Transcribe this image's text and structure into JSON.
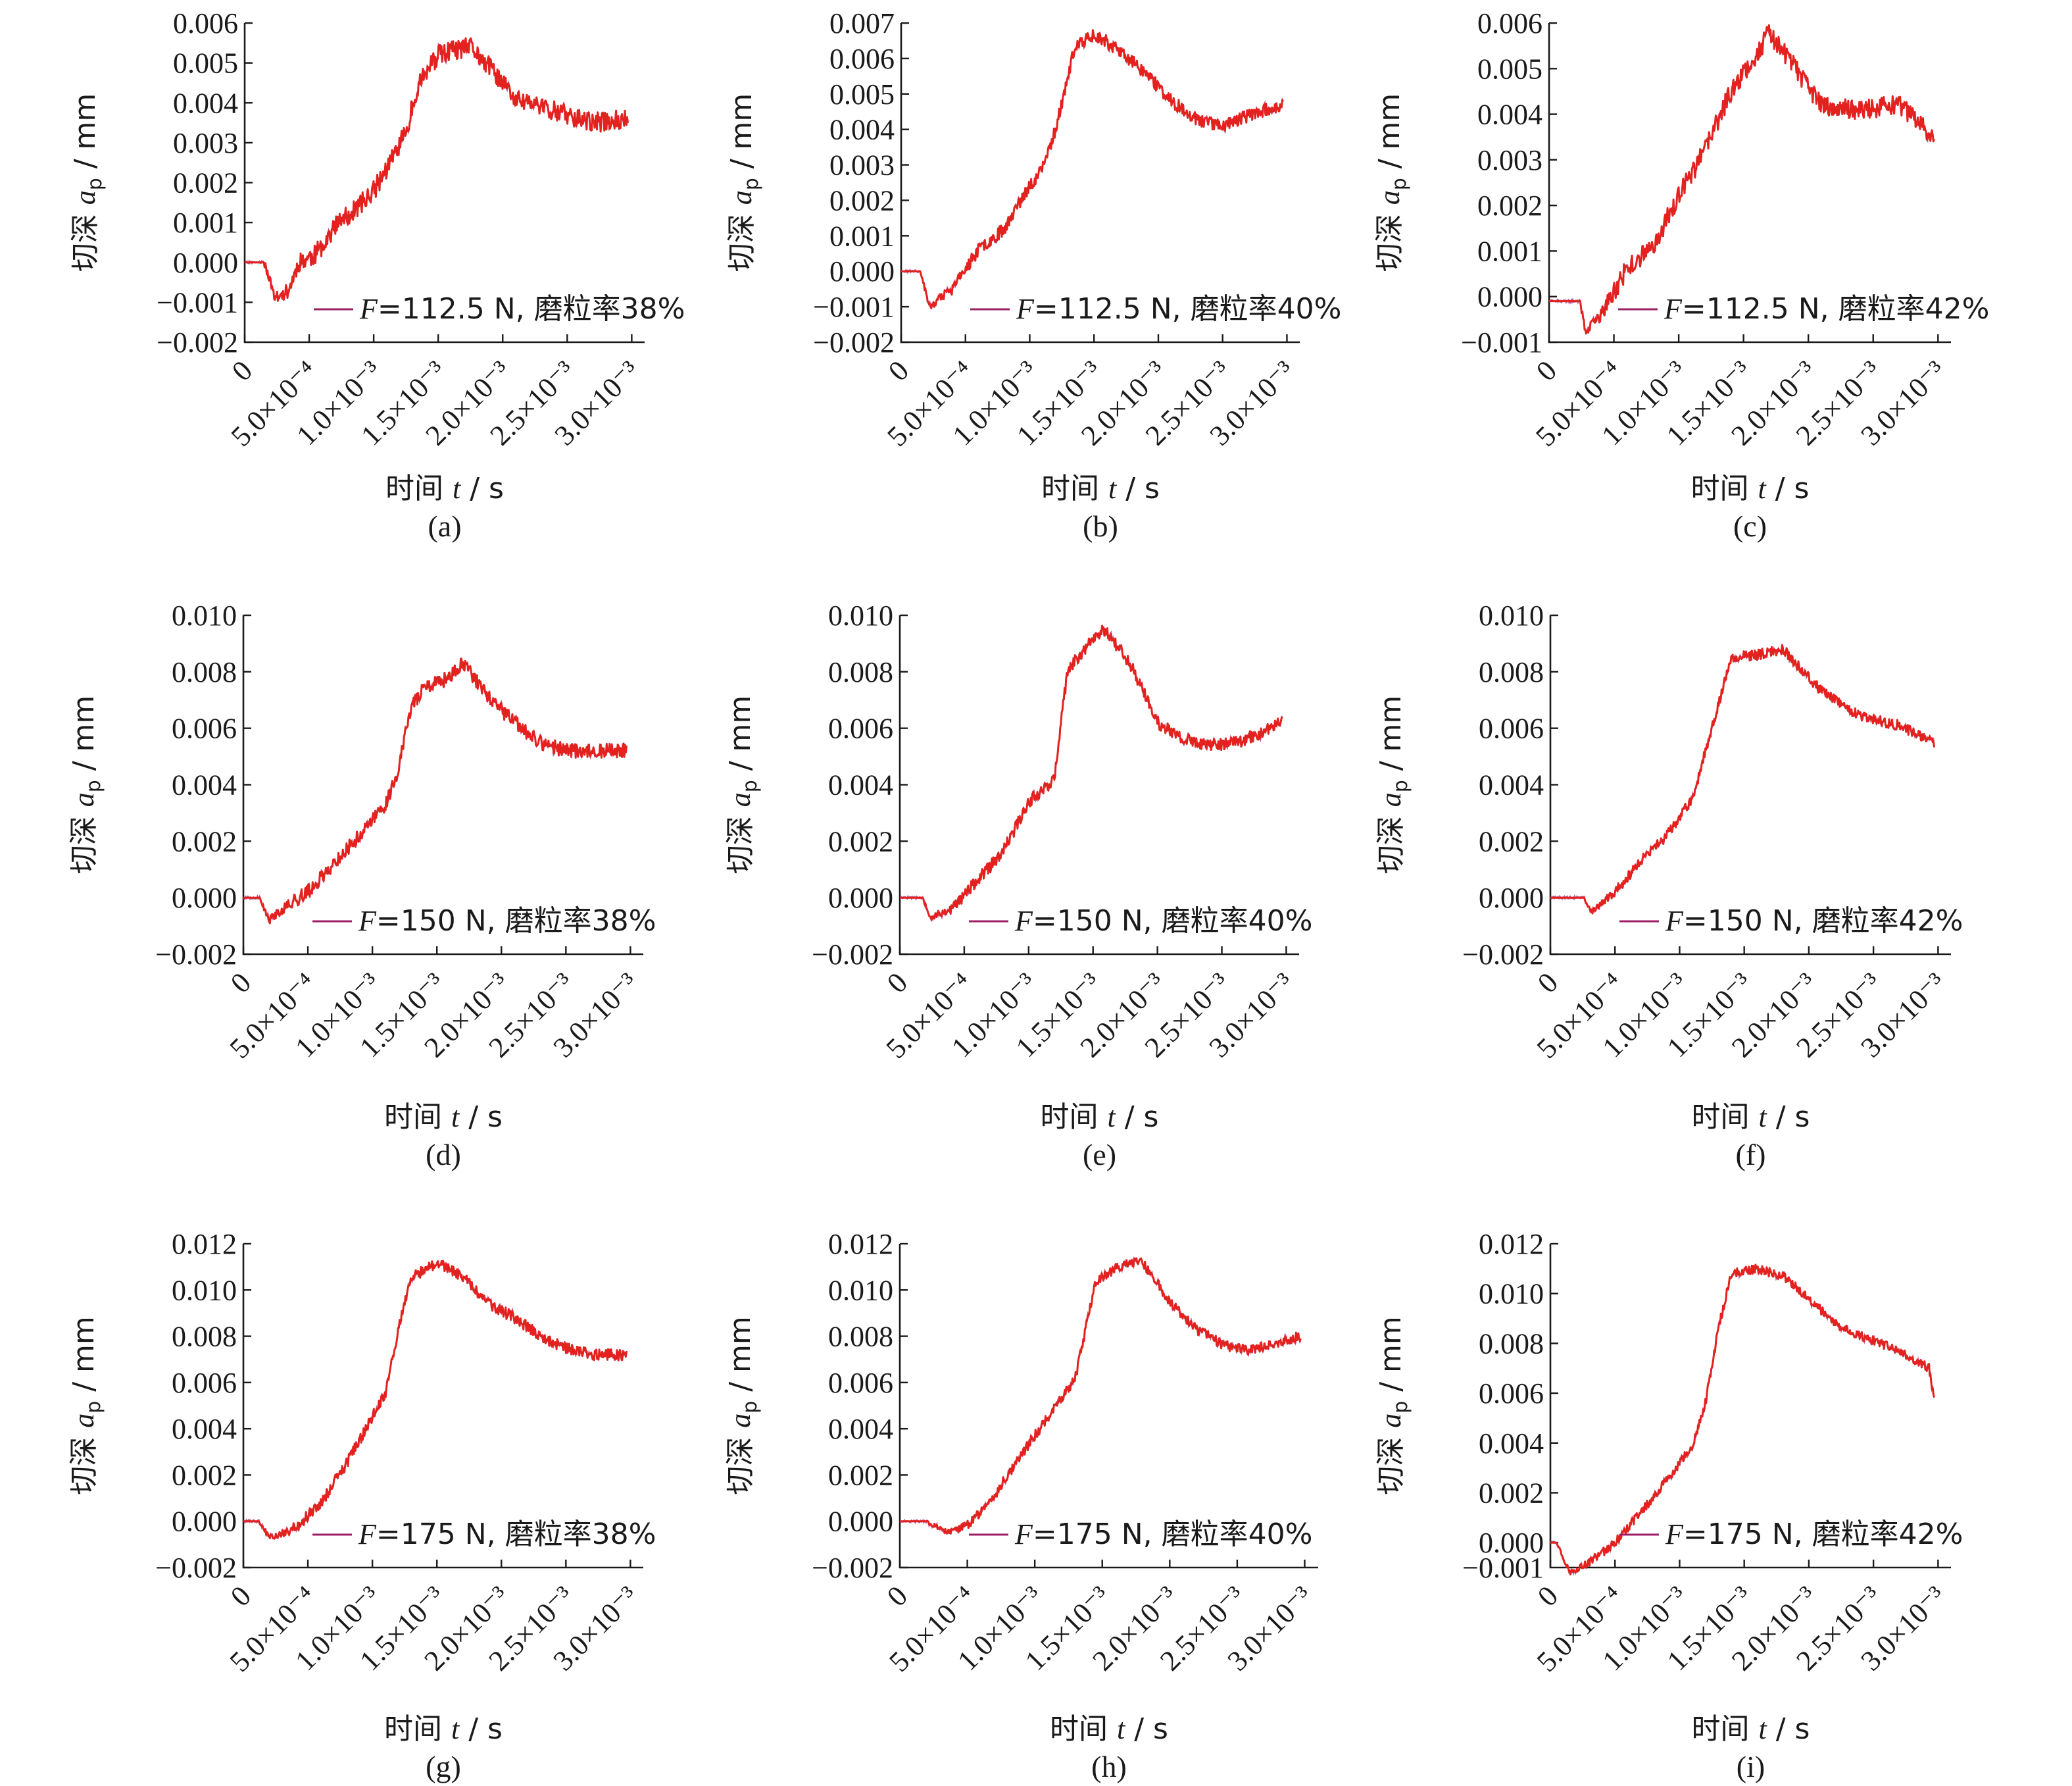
{
  "colors": {
    "series_primary": "#e3211e",
    "series_secondary": "#9c1f66",
    "axis": "#1a1a1a"
  },
  "chart_data": [
    {
      "panel": "(a)",
      "type": "line",
      "ylabel_prefix": "切深 ",
      "ylabel_var": "a",
      "ylabel_sub": "p",
      "ylabel_unit": " / mm",
      "xlabel_prefix": "时间 ",
      "xlabel_var": "t",
      "xlabel_unit": " / s",
      "xlim": [
        0,
        0.0031
      ],
      "ylim": [
        -0.002,
        0.006
      ],
      "yticks": [
        -0.002,
        -0.001,
        0.0,
        0.001,
        0.002,
        0.003,
        0.004,
        0.005,
        0.006
      ],
      "ytick_labels": [
        "−0.002",
        "−0.001",
        "0.000",
        "0.001",
        "0.002",
        "0.003",
        "0.004",
        "0.005",
        "0.006"
      ],
      "xticks": [
        0,
        0.0005,
        0.001,
        0.0015,
        0.002,
        0.0025,
        0.003
      ],
      "xtick_labels": [
        "0",
        "5.0×10⁻⁴",
        "1.0×10⁻³",
        "1.5×10⁻³",
        "2.0×10⁻³",
        "2.5×10⁻³",
        "3.0×10⁻³"
      ],
      "legend": {
        "var": "F",
        "text": "=112.5 N, 磨粒率38%",
        "position": "bottom-right"
      },
      "series": [
        {
          "noise": 0.00025,
          "seed": 11,
          "x": [
            0,
            0.00015,
            0.00024,
            0.00034,
            0.00042,
            0.00055,
            0.0007,
            0.00085,
            0.001,
            0.00113,
            0.00125,
            0.00135,
            0.0015,
            0.00162,
            0.00175,
            0.0019,
            0.0021,
            0.0024,
            0.0027,
            0.00297
          ],
          "y": [
            0.0,
            0.0,
            -0.0009,
            -0.0007,
            0.0,
            0.0002,
            0.0009,
            0.0013,
            0.0018,
            0.0025,
            0.0033,
            0.0045,
            0.0052,
            0.0053,
            0.0054,
            0.0049,
            0.0041,
            0.0038,
            0.0035,
            0.0036
          ]
        }
      ]
    },
    {
      "panel": "(b)",
      "type": "line",
      "ylabel_prefix": "切深 ",
      "ylabel_var": "a",
      "ylabel_sub": "p",
      "ylabel_unit": " / mm",
      "xlabel_prefix": "时间 ",
      "xlabel_var": "t",
      "xlabel_unit": " / s",
      "xlim": [
        0,
        0.0031
      ],
      "ylim": [
        -0.002,
        0.007
      ],
      "yticks": [
        -0.002,
        -0.001,
        0.0,
        0.001,
        0.002,
        0.003,
        0.004,
        0.005,
        0.006,
        0.007
      ],
      "ytick_labels": [
        "−0.002",
        "−0.001",
        "0.000",
        "0.001",
        "0.002",
        "0.003",
        "0.004",
        "0.005",
        "0.006",
        "0.007"
      ],
      "xticks": [
        0,
        0.0005,
        0.001,
        0.0015,
        0.002,
        0.0025,
        0.003
      ],
      "xtick_labels": [
        "0",
        "5.0×10⁻⁴",
        "1.0×10⁻³",
        "1.5×10⁻³",
        "2.0×10⁻³",
        "2.5×10⁻³",
        "3.0×10⁻³"
      ],
      "legend": {
        "var": "F",
        "text": "=112.5 N, 磨粒率40%",
        "position": "bottom-right"
      },
      "series": [
        {
          "noise": 0.00018,
          "seed": 23,
          "x": [
            0,
            0.00015,
            0.00022,
            0.0004,
            0.0006,
            0.0008,
            0.001,
            0.0011,
            0.0012,
            0.00135,
            0.0015,
            0.0017,
            0.0019,
            0.0021,
            0.0023,
            0.0025,
            0.0027,
            0.00297
          ],
          "y": [
            0.0,
            0.0,
            -0.001,
            -0.0005,
            0.0006,
            0.0012,
            0.0024,
            0.0029,
            0.004,
            0.0063,
            0.0067,
            0.0062,
            0.0056,
            0.0048,
            0.0043,
            0.0041,
            0.0044,
            0.0047
          ]
        }
      ]
    },
    {
      "panel": "(c)",
      "type": "line",
      "ylabel_prefix": "切深 ",
      "ylabel_var": "a",
      "ylabel_sub": "p",
      "ylabel_unit": " / mm",
      "xlabel_prefix": "时间 ",
      "xlabel_var": "t",
      "xlabel_unit": " / s",
      "xlim": [
        0,
        0.0031
      ],
      "ylim": [
        -0.001,
        0.006
      ],
      "yticks": [
        -0.001,
        0.0,
        0.001,
        0.002,
        0.003,
        0.004,
        0.005,
        0.006
      ],
      "ytick_labels": [
        "−0.001",
        "0.000",
        "0.001",
        "0.002",
        "0.003",
        "0.004",
        "0.005",
        "0.006"
      ],
      "xticks": [
        0,
        0.0005,
        0.001,
        0.0015,
        0.002,
        0.0025,
        0.003
      ],
      "xtick_labels": [
        "0",
        "5.0×10⁻⁴",
        "1.0×10⁻³",
        "1.5×10⁻³",
        "2.0×10⁻³",
        "2.5×10⁻³",
        "3.0×10⁻³"
      ],
      "legend": {
        "var": "F",
        "text": "=112.5 N, 磨粒率42%",
        "position": "bottom-right"
      },
      "series": [
        {
          "noise": 0.00022,
          "seed": 37,
          "x": [
            0,
            0.00024,
            0.00028,
            0.0004,
            0.0006,
            0.0008,
            0.001,
            0.0012,
            0.0014,
            0.0016,
            0.0017,
            0.0019,
            0.0021,
            0.0024,
            0.0027,
            0.00297
          ],
          "y": [
            -0.0001,
            -0.0001,
            -0.0008,
            -0.0004,
            0.0006,
            0.0011,
            0.0022,
            0.0032,
            0.0045,
            0.0053,
            0.0058,
            0.005,
            0.0042,
            0.0041,
            0.0042,
            0.0035
          ]
        }
      ]
    },
    {
      "panel": "(d)",
      "type": "line",
      "ylabel_prefix": "切深 ",
      "ylabel_var": "a",
      "ylabel_sub": "p",
      "ylabel_unit": " / mm",
      "xlabel_prefix": "时间 ",
      "xlabel_var": "t",
      "xlabel_unit": " / s",
      "xlim": [
        0,
        0.0031
      ],
      "ylim": [
        -0.002,
        0.01
      ],
      "yticks": [
        -0.002,
        0.0,
        0.002,
        0.004,
        0.006,
        0.008,
        0.01
      ],
      "ytick_labels": [
        "−0.002",
        "0.000",
        "0.002",
        "0.004",
        "0.006",
        "0.008",
        "0.010"
      ],
      "xticks": [
        0,
        0.0005,
        0.001,
        0.0015,
        0.002,
        0.0025,
        0.003
      ],
      "xtick_labels": [
        "0",
        "5.0×10⁻⁴",
        "1.0×10⁻³",
        "1.5×10⁻³",
        "2.0×10⁻³",
        "2.5×10⁻³",
        "3.0×10⁻³"
      ],
      "legend": {
        "var": "F",
        "text": "=150 N, 磨粒率38%",
        "position": "bottom-right"
      },
      "series": [
        {
          "noise": 0.00025,
          "seed": 41,
          "x": [
            0,
            0.00012,
            0.0002,
            0.0003,
            0.0005,
            0.0007,
            0.0009,
            0.0011,
            0.0012,
            0.0013,
            0.0014,
            0.0016,
            0.0017,
            0.0019,
            0.0021,
            0.0023,
            0.0025,
            0.0027,
            0.00297
          ],
          "y": [
            0.0,
            0.0,
            -0.0008,
            -0.0004,
            0.0002,
            0.0012,
            0.0022,
            0.0033,
            0.0045,
            0.0068,
            0.0074,
            0.0078,
            0.0083,
            0.0071,
            0.0062,
            0.0055,
            0.0052,
            0.0052,
            0.0052
          ]
        }
      ]
    },
    {
      "panel": "(e)",
      "type": "line",
      "ylabel_prefix": "切深 ",
      "ylabel_var": "a",
      "ylabel_sub": "p",
      "ylabel_unit": " / mm",
      "xlabel_prefix": "时间 ",
      "xlabel_var": "t",
      "xlabel_unit": " / s",
      "xlim": [
        0,
        0.0031
      ],
      "ylim": [
        -0.002,
        0.01
      ],
      "yticks": [
        -0.002,
        0.0,
        0.002,
        0.004,
        0.006,
        0.008,
        0.01
      ],
      "ytick_labels": [
        "−0.002",
        "0.000",
        "0.002",
        "0.004",
        "0.006",
        "0.008",
        "0.010"
      ],
      "xticks": [
        0,
        0.0005,
        0.001,
        0.0015,
        0.002,
        0.0025,
        0.003
      ],
      "xtick_labels": [
        "0",
        "5.0×10⁻⁴",
        "1.0×10⁻³",
        "1.5×10⁻³",
        "2.0×10⁻³",
        "2.5×10⁻³",
        "3.0×10⁻³"
      ],
      "legend": {
        "var": "F",
        "text": "=150 N, 磨粒率40%",
        "position": "bottom-right"
      },
      "series": [
        {
          "noise": 0.00022,
          "seed": 53,
          "x": [
            0,
            0.00018,
            0.00024,
            0.0004,
            0.0006,
            0.0008,
            0.001,
            0.0012,
            0.0013,
            0.0015,
            0.0016,
            0.0018,
            0.002,
            0.0022,
            0.0024,
            0.0026,
            0.0028,
            0.00297
          ],
          "y": [
            0.0,
            0.0,
            -0.0007,
            -0.0004,
            0.0006,
            0.0016,
            0.0034,
            0.0042,
            0.008,
            0.0092,
            0.0095,
            0.0082,
            0.0062,
            0.0056,
            0.0054,
            0.0055,
            0.0058,
            0.0063
          ]
        }
      ]
    },
    {
      "panel": "(f)",
      "type": "line",
      "ylabel_prefix": "切深 ",
      "ylabel_var": "a",
      "ylabel_sub": "p",
      "ylabel_unit": " / mm",
      "xlabel_prefix": "时间 ",
      "xlabel_var": "t",
      "xlabel_unit": " / s",
      "xlim": [
        0,
        0.0031
      ],
      "ylim": [
        -0.002,
        0.01
      ],
      "yticks": [
        -0.002,
        0.0,
        0.002,
        0.004,
        0.006,
        0.008,
        0.01
      ],
      "ytick_labels": [
        "−0.002",
        "0.000",
        "0.002",
        "0.004",
        "0.006",
        "0.008",
        "0.010"
      ],
      "xticks": [
        0,
        0.0005,
        0.001,
        0.0015,
        0.002,
        0.0025,
        0.003
      ],
      "xtick_labels": [
        "0",
        "5.0×10⁻⁴",
        "1.0×10⁻³",
        "1.5×10⁻³",
        "2.0×10⁻³",
        "2.5×10⁻³",
        "3.0×10⁻³"
      ],
      "legend": {
        "var": "F",
        "text": "=150 N, 磨粒率42%",
        "position": "bottom-right"
      },
      "series": [
        {
          "noise": 0.00018,
          "seed": 67,
          "x": [
            0,
            0.00026,
            0.00032,
            0.0005,
            0.0007,
            0.0009,
            0.0011,
            0.0012,
            0.0014,
            0.0016,
            0.0018,
            0.0021,
            0.0024,
            0.0027,
            0.00297
          ],
          "y": [
            0.0,
            0.0,
            -0.0005,
            0.0002,
            0.0013,
            0.0022,
            0.0035,
            0.0052,
            0.0085,
            0.0086,
            0.0088,
            0.0073,
            0.0064,
            0.0061,
            0.0055
          ]
        }
      ]
    },
    {
      "panel": "(g)",
      "type": "line",
      "ylabel_prefix": "切深 ",
      "ylabel_var": "a",
      "ylabel_sub": "p",
      "ylabel_unit": " / mm",
      "xlabel_prefix": "时间 ",
      "xlabel_var": "t",
      "xlabel_unit": " / s",
      "xlim": [
        0,
        0.0031
      ],
      "ylim": [
        -0.002,
        0.012
      ],
      "yticks": [
        -0.002,
        0.0,
        0.002,
        0.004,
        0.006,
        0.008,
        0.01,
        0.012
      ],
      "ytick_labels": [
        "−0.002",
        "0.000",
        "0.002",
        "0.004",
        "0.006",
        "0.008",
        "0.010",
        "0.012"
      ],
      "xticks": [
        0,
        0.0005,
        0.001,
        0.0015,
        0.002,
        0.0025,
        0.003
      ],
      "xtick_labels": [
        "0",
        "5.0×10⁻⁴",
        "1.0×10⁻³",
        "1.5×10⁻³",
        "2.0×10⁻³",
        "2.5×10⁻³",
        "3.0×10⁻³"
      ],
      "legend": {
        "var": "F",
        "text": "=175 N, 磨粒率38%",
        "position": "bottom-right"
      },
      "series": [
        {
          "noise": 0.00025,
          "seed": 79,
          "x": [
            0,
            0.00012,
            0.0002,
            0.0004,
            0.0006,
            0.0008,
            0.001,
            0.0011,
            0.0012,
            0.0013,
            0.0015,
            0.0017,
            0.0019,
            0.0021,
            0.0023,
            0.0025,
            0.0027,
            0.00297
          ],
          "y": [
            0.0,
            0.0,
            -0.0007,
            -0.0003,
            0.0008,
            0.0025,
            0.0045,
            0.0055,
            0.0083,
            0.0105,
            0.0112,
            0.0106,
            0.0094,
            0.0088,
            0.008,
            0.0075,
            0.0072,
            0.0072
          ]
        }
      ]
    },
    {
      "panel": "(h)",
      "type": "line",
      "ylabel_prefix": "切深 ",
      "ylabel_var": "a",
      "ylabel_sub": "p",
      "ylabel_unit": " / mm",
      "xlabel_prefix": "时间 ",
      "xlabel_var": "t",
      "xlabel_unit": " / s",
      "xlim": [
        0,
        0.0031
      ],
      "ylim": [
        -0.002,
        0.012
      ],
      "yticks": [
        -0.002,
        0.0,
        0.002,
        0.004,
        0.006,
        0.008,
        0.01,
        0.012
      ],
      "ytick_labels": [
        "−0.002",
        "0.000",
        "0.002",
        "0.004",
        "0.006",
        "0.008",
        "0.010",
        "0.012"
      ],
      "xticks": [
        0,
        0.0005,
        0.001,
        0.0015,
        0.002,
        0.0025,
        0.003
      ],
      "xtick_labels": [
        "0",
        "5.0×10⁻⁴",
        "1.0×10⁻³",
        "1.5×10⁻³",
        "2.0×10⁻³",
        "2.5×10⁻³",
        "3.0×10⁻³"
      ],
      "legend": {
        "var": "F",
        "text": "=175 N, 磨粒率40%",
        "position": "bottom-right"
      },
      "series": [
        {
          "noise": 0.00022,
          "seed": 83,
          "x": [
            0,
            0.0002,
            0.00036,
            0.0005,
            0.0007,
            0.0009,
            0.0011,
            0.0013,
            0.00145,
            0.0016,
            0.0018,
            0.002,
            0.0022,
            0.0024,
            0.0026,
            0.0028,
            0.00297
          ],
          "y": [
            0.0,
            0.0,
            -0.0005,
            -0.0002,
            0.0011,
            0.0029,
            0.0045,
            0.0062,
            0.0103,
            0.011,
            0.0112,
            0.0095,
            0.0083,
            0.0076,
            0.0074,
            0.0077,
            0.008
          ]
        }
      ]
    },
    {
      "panel": "(i)",
      "type": "line",
      "ylabel_prefix": "切深 ",
      "ylabel_var": "a",
      "ylabel_sub": "p",
      "ylabel_unit": " / mm",
      "xlabel_prefix": "时间 ",
      "xlabel_var": "t",
      "xlabel_unit": " / s",
      "xlim": [
        0,
        0.0031
      ],
      "ylim": [
        -0.001,
        0.012
      ],
      "yticks": [
        0.0,
        0.002,
        0.004,
        0.006,
        0.008,
        0.01,
        0.012
      ],
      "ytick_labels": [
        "0.000",
        "0.002",
        "0.004",
        "0.006",
        "0.008",
        "0.010",
        "0.012"
      ],
      "extra_ytick_label": "−0.001",
      "xticks": [
        0,
        0.0005,
        0.001,
        0.0015,
        0.002,
        0.0025,
        0.003
      ],
      "xtick_labels": [
        "0",
        "5.0×10⁻⁴",
        "1.0×10⁻³",
        "1.5×10⁻³",
        "2.0×10⁻³",
        "2.5×10⁻³",
        "3.0×10⁻³"
      ],
      "legend": {
        "var": "F",
        "text": "=175 N, 磨粒率42%",
        "position": "bottom-right"
      },
      "series": [
        {
          "noise": 0.00018,
          "seed": 97,
          "x": [
            0,
            5e-05,
            0.00015,
            0.0003,
            0.0005,
            0.0007,
            0.0009,
            0.0011,
            0.0012,
            0.0013,
            0.0014,
            0.0016,
            0.0018,
            0.002,
            0.0022,
            0.0024,
            0.0026,
            0.0028,
            0.00293,
            0.00297
          ],
          "y": [
            0.0,
            0.0,
            -0.0012,
            -0.0008,
            0.0,
            0.0012,
            0.0025,
            0.0039,
            0.0056,
            0.0086,
            0.0108,
            0.011,
            0.0107,
            0.0098,
            0.0088,
            0.0083,
            0.0079,
            0.0074,
            0.007,
            0.0058
          ]
        }
      ]
    }
  ]
}
